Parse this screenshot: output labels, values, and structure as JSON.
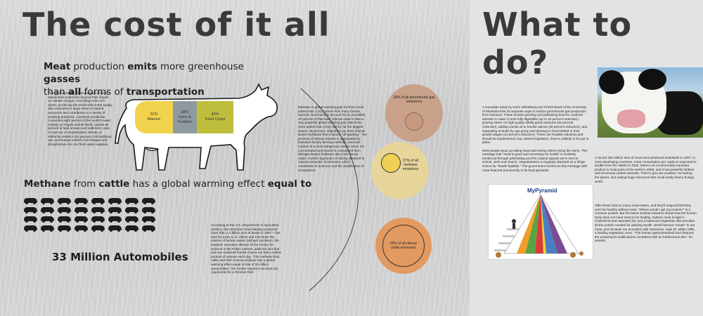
{
  "left": {
    "title": "The cost of it all",
    "headline": {
      "part1": "Meat",
      "part2": " production ",
      "part3": "emits",
      "part4": " more greenhouse ",
      "part5": "gasses",
      "part6": " than ",
      "part7": "all",
      "part8": " forms of ",
      "part9": "transportation"
    },
    "env_paragraph": "The environmental consequences of meat-based diets extend far beyond their impact on climate change. According to the UN report, producing the world-wide meat supply also consumes a large share of natural resources and contributes to a variety of pressing problems. Livestock production consumes eight percent of the world's water (mainly on irrigate animal feed), causes 55 percent of land erosion and sediment, uses 37 percent of all pesticides; directly or indirectly results in 50 percent of all antibiotic use, and dumps a third of all nitrogen and phosphorous into our fresh water supplies.",
    "cow_segments": {
      "manure": {
        "pct": "32%",
        "label": "Manure"
      },
      "farm": {
        "pct": "28%",
        "label": "Farm & Fertilizer"
      },
      "feed": {
        "pct": "40%",
        "label": "Feed Crops"
      }
    },
    "methane_heading": {
      "part1": "Methane",
      "part2": " from ",
      "part3": "cattle",
      "part4": " has a global warming effect ",
      "part5": "equal to"
    },
    "automobiles": "33 Million Automobiles",
    "usda_paragraph": "According to the U.S. Department of Agriculture (USDA), the American meat industry produced more than 1.4 billion tons of waste in 1997 – five tons for every U.S. citizen and 130 times the volume of human waste. Michael Jacobson, the longtime executive director of the Center for Science in the Public Interest, adds the fact that just one midsized feedlot churns out half a million pounds of manure each day. \"The methane that cattle and their manure produce has a global warming effect equal to that of 33 million automobiles,\" the Center reports in its book Six Arguments for a Greener Diet.",
    "middle_paragraph": "Methane is global warming gas 23 times more potent than CO2 (comes from many human sources, but livestock account for an incredible 37 percent of that load. Nitrous oxide is also a very powerful global warming gas (296 times more potent than CO2) and by far the biggest source, 65 percent, originates (as does animal-based methane) from manure \"off-gassing.\" The process of nitrous creation is aggravated by intensive factory farming methods, because manure is a more dangerous emitter when it is concentrated and stored in compacted form. Nitrogen-based fertilizers also emit nitrous oxide. Another byproduct of raising livestock is copious amounts of ammonia, which contributes to acid rain and the acidification of ecosystems.",
    "circles": {
      "c1": "18% of all greenhouse gas emissions",
      "c2": "37% of all methane emissions",
      "c3": "65% of all nitrous oxide emissions"
    }
  },
  "right": {
    "title": "What to do?",
    "paragraph1": "A Canadian study by Karin Whitteberg and Chrish Brazil of the University of Manitoba lists 20 separate ways to reduce greenhouse gas production from livestock. These include grinding and pelletizing food for confined animals to make it more fully digestible (up to 40 percent reduction), grazing steers on high-quality alfalfa grass pastures (25 percent reduction), adding canola oil to feedlot rations (30 percent reduction), and separating animals by age group and phasing in food related to their growth stages (10 percent reduction). These are feasible solutions and should be implemented, but, absent legislation, they're unlikely to be put in place.",
    "paragraph2": "Most people grow up eating meat and seeing others doing the same. This message that \"meat is good and necessary for health\" is routinely reinforced through advertising and the cultural signals we're sent at school, work and church. Vegetarianism is regularly depicted as a fringe choice for \"health faddists.\" The government reinforces this message with meat featured prominently in its food pyramids.",
    "paragraph3": "A record 284 million tons of meat were produced worldwide in 2007. In most developing countries, meat consumption per capita is expected to double from the 1960s to 2020. Meat is an economically important product in most parts of the world in 2008, and it has powerful lobbies and enormous vested interests. There's just one problem: Its hurting the planet, and raising huge resources that could easily feed a hungry world.",
    "paragraph4": "Offer these facts to many meat-eaters, and they'll respond that they can't be healthy without meat. \"Where would I get my protein?\" is a common protest. But the latest medical research shows that the human body does not need meat to be healthy. Indeed, meat is high in cholesterol and saturated fat, and a balanced vegetarian diet provides all the protein needed for glowing health. World famous \"meats\" to eat meat, just because our ancestors did! Nonsense, says Dr. Milton Mills, a leading vegetarian voice. \"The human gastrointestinal tract features the anatomical modifications consistent with an herbivorous diet,\" he asserts.",
    "pyramid_title": "MyPyramid"
  },
  "colors": {
    "manure": "#f1d24c",
    "farm": "#8f9aa0",
    "feed": "#bdbe3c",
    "circle1": "#c9a089",
    "circle2": "#e7d59a",
    "circle3": "#e39a60"
  },
  "icons": [
    "car-icon",
    "cow-outline-icon",
    "cow-photo",
    "food-pyramid-image"
  ]
}
